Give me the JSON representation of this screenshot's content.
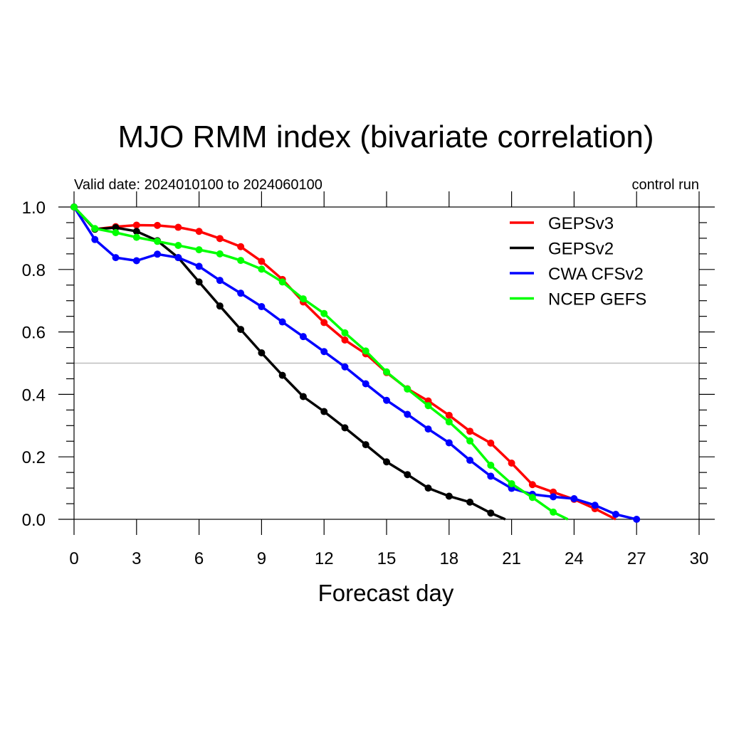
{
  "chart_data": {
    "type": "line",
    "title": "MJO RMM index (bivariate correlation)",
    "subtitle_left": "Valid date: 2024010100 to 2024060100",
    "subtitle_right": "control run",
    "xlabel": "Forecast day",
    "ylabel": "",
    "xlim": [
      0,
      30
    ],
    "ylim": [
      0,
      1.0
    ],
    "xticks": [
      0,
      3,
      6,
      9,
      12,
      15,
      18,
      21,
      24,
      27,
      30
    ],
    "yticks": [
      0.0,
      0.2,
      0.4,
      0.6,
      0.8,
      1.0
    ],
    "xtick_labels": [
      "0",
      "3",
      "6",
      "9",
      "12",
      "15",
      "18",
      "21",
      "24",
      "27",
      "30"
    ],
    "ytick_labels": [
      "0.0",
      "0.2",
      "0.4",
      "0.6",
      "0.8",
      "1.0"
    ],
    "reference_line": 0.5,
    "legend_position": "top-right",
    "series": [
      {
        "name": "GEPSv3",
        "color": "#ff0000",
        "x": [
          0,
          1,
          2,
          3,
          4,
          5,
          6,
          7,
          8,
          9,
          10,
          11,
          12,
          13,
          14,
          15,
          16,
          17,
          18,
          19,
          20,
          21,
          22,
          23,
          24,
          25,
          26
        ],
        "y": [
          1.0,
          0.929,
          0.937,
          0.942,
          0.941,
          0.935,
          0.922,
          0.899,
          0.873,
          0.826,
          0.768,
          0.696,
          0.63,
          0.574,
          0.53,
          0.47,
          0.418,
          0.379,
          0.333,
          0.282,
          0.244,
          0.18,
          0.111,
          0.087,
          0.064,
          0.034,
          0.0
        ],
        "markers_x": [
          0,
          1,
          2,
          3,
          4,
          5,
          6,
          7,
          8,
          9,
          10,
          11,
          12,
          13,
          14,
          15,
          16,
          17,
          18,
          19,
          20,
          21,
          22,
          23,
          24,
          25
        ]
      },
      {
        "name": "GEPSv2",
        "color": "#000000",
        "x": [
          0,
          1,
          2,
          3,
          4,
          5,
          6,
          7,
          8,
          9,
          10,
          11,
          12,
          13,
          14,
          15,
          16,
          17,
          18,
          19,
          20,
          20.7
        ],
        "y": [
          1.0,
          0.929,
          0.934,
          0.922,
          0.892,
          0.838,
          0.76,
          0.683,
          0.608,
          0.533,
          0.461,
          0.393,
          0.345,
          0.293,
          0.239,
          0.184,
          0.143,
          0.1,
          0.074,
          0.055,
          0.02,
          0.0
        ],
        "markers_x": [
          0,
          1,
          2,
          3,
          4,
          5,
          6,
          7,
          8,
          9,
          10,
          11,
          12,
          13,
          14,
          15,
          16,
          17,
          18,
          19,
          20
        ]
      },
      {
        "name": "CWA CFSv2",
        "color": "#0000ff",
        "x": [
          0,
          1,
          2,
          3,
          4,
          5,
          6,
          7,
          8,
          9,
          10,
          11,
          12,
          13,
          14,
          15,
          16,
          17,
          18,
          19,
          20,
          21,
          22,
          23,
          24,
          25,
          26,
          27
        ],
        "y": [
          1.0,
          0.896,
          0.838,
          0.828,
          0.849,
          0.838,
          0.81,
          0.765,
          0.724,
          0.681,
          0.632,
          0.585,
          0.537,
          0.488,
          0.434,
          0.381,
          0.336,
          0.289,
          0.245,
          0.189,
          0.138,
          0.099,
          0.08,
          0.072,
          0.066,
          0.045,
          0.016,
          0.0
        ],
        "markers_x": [
          0,
          1,
          2,
          3,
          4,
          5,
          6,
          7,
          8,
          9,
          10,
          11,
          12,
          13,
          14,
          15,
          16,
          17,
          18,
          19,
          20,
          21,
          22,
          23,
          24,
          25,
          26,
          27
        ]
      },
      {
        "name": "NCEP GEFS",
        "color": "#00ff00",
        "x": [
          0,
          1,
          2,
          3,
          4,
          5,
          6,
          7,
          8,
          9,
          10,
          11,
          12,
          13,
          14,
          15,
          16,
          17,
          18,
          19,
          20,
          21,
          22,
          23,
          23.7
        ],
        "y": [
          1.0,
          0.931,
          0.918,
          0.903,
          0.89,
          0.877,
          0.863,
          0.85,
          0.829,
          0.801,
          0.76,
          0.706,
          0.659,
          0.597,
          0.539,
          0.472,
          0.417,
          0.364,
          0.312,
          0.251,
          0.173,
          0.114,
          0.07,
          0.023,
          0.0
        ],
        "markers_x": [
          0,
          1,
          2,
          3,
          4,
          5,
          6,
          7,
          8,
          9,
          10,
          11,
          12,
          13,
          14,
          15,
          16,
          17,
          18,
          19,
          20,
          21,
          22,
          23
        ]
      }
    ]
  }
}
